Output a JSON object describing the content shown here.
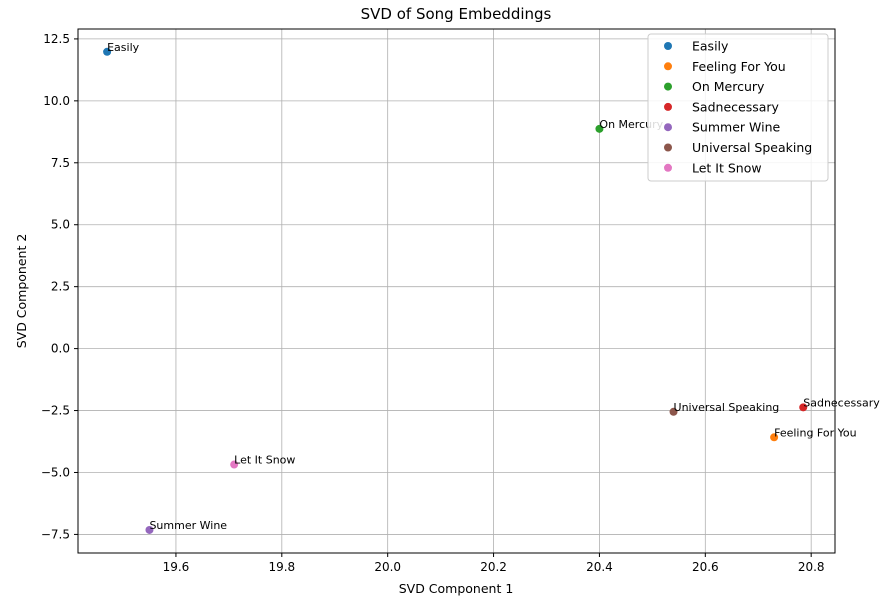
{
  "chart_data": {
    "type": "scatter",
    "title": "SVD of Song Embeddings",
    "xlabel": "SVD Component 1",
    "ylabel": "SVD Component 2",
    "xlim": [
      19.415,
      20.845
    ],
    "ylim": [
      -8.25,
      12.9
    ],
    "xticks": [
      19.6,
      19.8,
      20.0,
      20.2,
      20.4,
      20.6,
      20.8
    ],
    "xtick_labels": [
      "19.6",
      "19.8",
      "20.0",
      "20.2",
      "20.4",
      "20.6",
      "20.8"
    ],
    "yticks": [
      -7.5,
      -5.0,
      -2.5,
      0.0,
      2.5,
      5.0,
      7.5,
      10.0,
      12.5
    ],
    "ytick_labels": [
      "−7.5",
      "−5.0",
      "−2.5",
      "0.0",
      "2.5",
      "5.0",
      "7.5",
      "10.0",
      "12.5"
    ],
    "grid": true,
    "legend_position": "top-right",
    "series": [
      {
        "name": "Easily",
        "color": "#1f77b4",
        "x": 19.47,
        "y": 11.98
      },
      {
        "name": "Feeling For You",
        "color": "#ff7f0e",
        "x": 20.73,
        "y": -3.58
      },
      {
        "name": "On Mercury",
        "color": "#2ca02c",
        "x": 20.4,
        "y": 8.87
      },
      {
        "name": "Sadnecessary",
        "color": "#d62728",
        "x": 20.785,
        "y": -2.37
      },
      {
        "name": "Summer Wine",
        "color": "#9467bd",
        "x": 19.55,
        "y": -7.32
      },
      {
        "name": "Universal Speaking",
        "color": "#8c564b",
        "x": 20.54,
        "y": -2.55
      },
      {
        "name": "Let It Snow",
        "color": "#e377c2",
        "x": 19.71,
        "y": -4.68
      }
    ]
  }
}
